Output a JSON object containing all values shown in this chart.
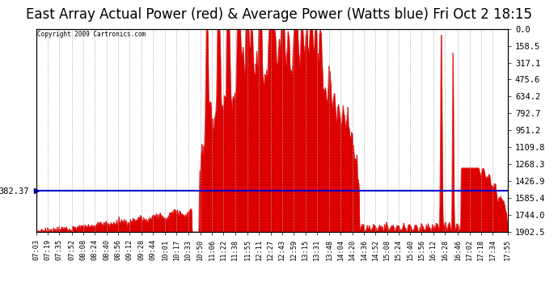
{
  "title": "East Array Actual Power (red) & Average Power (Watts blue) Fri Oct 2 18:15",
  "copyright": "Copyright 2009 Cartronics.com",
  "average_power": 382.37,
  "ymax": 1902.5,
  "ymin": 0.0,
  "yticks": [
    0.0,
    158.5,
    317.1,
    475.6,
    634.2,
    792.7,
    951.2,
    1109.8,
    1268.3,
    1426.9,
    1585.4,
    1744.0,
    1902.5
  ],
  "left_ytick_label": "382.37",
  "right_ytick_labels": [
    "1902.5",
    "1744.0",
    "1585.4",
    "1426.9",
    "1268.3",
    "1109.8",
    "951.2",
    "792.7",
    "634.2",
    "475.6",
    "317.1",
    "158.5",
    "0.0"
  ],
  "bg_color": "#ffffff",
  "plot_bg_color": "#ffffff",
  "grid_color": "#aaaaaa",
  "red_color": "#dd0000",
  "blue_color": "#0000cc",
  "time_labels": [
    "07:03",
    "07:19",
    "07:35",
    "07:52",
    "08:08",
    "08:24",
    "08:40",
    "08:56",
    "09:12",
    "09:28",
    "09:44",
    "10:01",
    "10:17",
    "10:33",
    "10:50",
    "11:06",
    "11:22",
    "11:38",
    "11:55",
    "12:11",
    "12:27",
    "12:43",
    "12:59",
    "13:15",
    "13:31",
    "13:48",
    "14:04",
    "14:20",
    "14:36",
    "14:52",
    "15:08",
    "15:24",
    "15:40",
    "15:56",
    "16:12",
    "16:28",
    "16:46",
    "17:02",
    "17:18",
    "17:34",
    "17:55"
  ],
  "title_fontsize": 12,
  "tick_fontsize": 7.5
}
